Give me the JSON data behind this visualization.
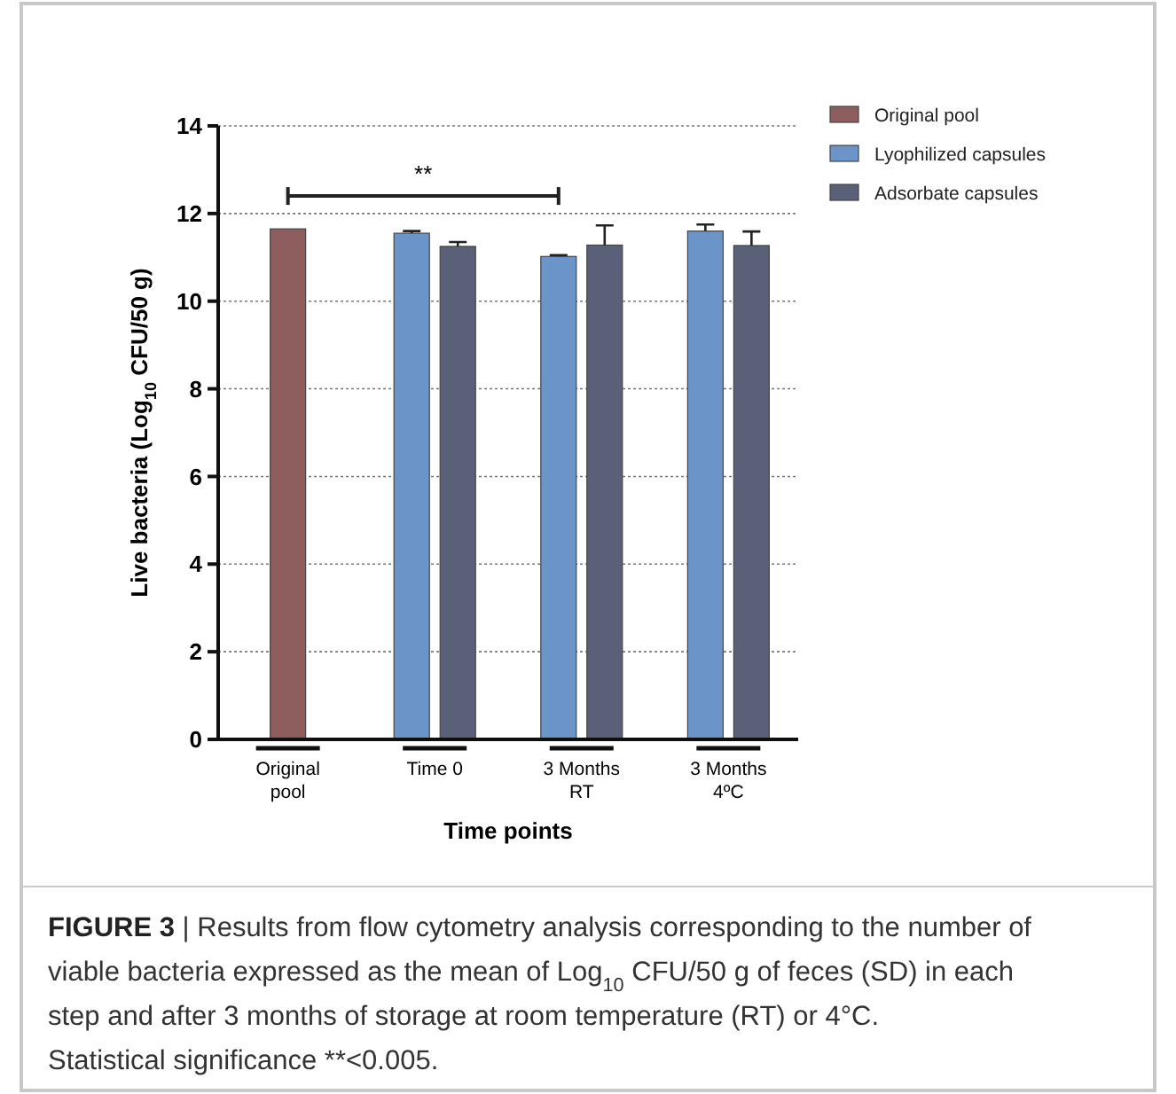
{
  "chart_data": {
    "type": "bar",
    "categories": [
      "Original pool",
      "Time 0",
      "3 Months RT",
      "3 Months 4ºC"
    ],
    "series": [
      {
        "name": "Original pool",
        "color": "#8e5d5d",
        "values": [
          11.65,
          null,
          null,
          null
        ]
      },
      {
        "name": "Lyophilized capsules",
        "color": "#6b95c9",
        "values": [
          null,
          11.55,
          11.02,
          11.6
        ],
        "errors": [
          null,
          [
            11.55,
            11.6
          ],
          [
            11.02,
            11.05
          ],
          [
            11.6,
            11.75
          ]
        ]
      },
      {
        "name": "Adsorbate capsules",
        "color": "#5a6078",
        "values": [
          null,
          11.25,
          11.28,
          11.27
        ],
        "errors": [
          null,
          [
            11.25,
            11.35
          ],
          [
            11.28,
            11.73
          ],
          [
            11.27,
            11.59
          ]
        ]
      }
    ],
    "xlabel": "Time points",
    "ylabel": "Live bacteria (Log$_{10}$ CFU/50 g)",
    "ylim": [
      0,
      14
    ],
    "yticks": [
      0,
      2,
      4,
      6,
      8,
      10,
      12,
      14
    ],
    "grid": "y",
    "legend": "top right",
    "annotations": [
      "**",
      "FIGURE 3 | Results from flow cytometry analysis corresponding to the number of viable bacteria expressed as the mean of Log$_{10}$ CFU/50 g of feces (SD) in each step and after 3 months of storage at room temperature (RT) or 4°C. Statistical significance **<0.005."
    ]
  }
}
